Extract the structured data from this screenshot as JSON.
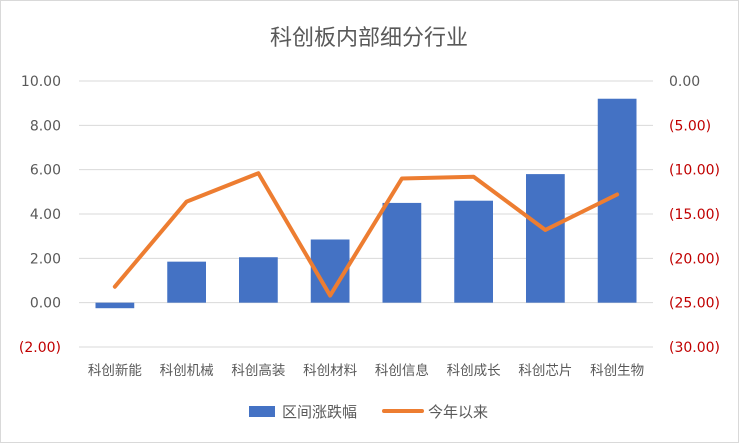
{
  "chart_data": {
    "type": "bar",
    "title": "科创板内部细分行业",
    "categories": [
      "科创新能",
      "科创机械",
      "科创高装",
      "科创材料",
      "科创信息",
      "科创成长",
      "科创芯片",
      "科创生物"
    ],
    "series": [
      {
        "name": "区间涨跌幅",
        "type": "bar",
        "axis": "left",
        "color": "#4472c4",
        "values": [
          -0.25,
          1.85,
          2.05,
          2.85,
          4.5,
          4.6,
          5.8,
          9.2
        ]
      },
      {
        "name": "今年以来",
        "type": "line",
        "axis": "right",
        "color": "#ed7d31",
        "values": [
          -23.2,
          -13.6,
          -10.4,
          -24.2,
          -11.0,
          -10.8,
          -16.8,
          -12.8
        ]
      }
    ],
    "y_left": {
      "min": -2,
      "max": 10,
      "ticks": [
        "(2.00)",
        "0.00",
        "2.00",
        "4.00",
        "6.00",
        "8.00",
        "10.00"
      ],
      "tick_values": [
        -2,
        0,
        2,
        4,
        6,
        8,
        10
      ]
    },
    "y_right": {
      "min": -30,
      "max": 0,
      "ticks": [
        "(30.00)",
        "(25.00)",
        "(20.00)",
        "(15.00)",
        "(10.00)",
        "(5.00)",
        "0.00"
      ],
      "tick_values": [
        -30,
        -25,
        -20,
        -15,
        -10,
        -5,
        0
      ],
      "color": "#c00000"
    },
    "legend": {
      "position": "bottom"
    },
    "grid": true
  }
}
